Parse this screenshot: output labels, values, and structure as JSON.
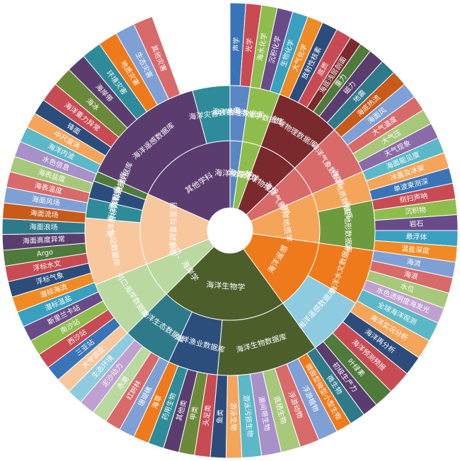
{
  "chart_data": {
    "type": "sunburst",
    "center_hole": true,
    "rings": [
      {
        "ring": 1,
        "segments": [
          {
            "label": "海洋物理学",
            "start": 0,
            "end": 8,
            "color": "#5b86c4"
          },
          {
            "label": "海洋化学",
            "start": 8,
            "end": 20,
            "color": "#8fbd4d"
          },
          {
            "label": "地球物理学",
            "start": 20,
            "end": 46,
            "color": "#7a2a2d"
          },
          {
            "label": "海洋气象学",
            "start": 46,
            "end": 66,
            "color": "#d86a6a"
          },
          {
            "label": "海洋地质学",
            "start": 66,
            "end": 98,
            "color": "#f4a55a"
          },
          {
            "label": "海洋遥感",
            "start": 98,
            "end": 144,
            "color": "#ee7a1c"
          },
          {
            "label": "海洋生物学",
            "start": 144,
            "end": 225,
            "color": "#4c5e2a"
          },
          {
            "label": "河口、海岸学",
            "start": 225,
            "end": 248,
            "color": "#b9d9a0"
          },
          {
            "label": "海洋调查与监测",
            "start": 248,
            "end": 294,
            "color": "#f9c79d"
          },
          {
            "label": "其他学科",
            "start": 294,
            "end": 360,
            "color": "#5a3d6e"
          }
        ]
      },
      {
        "ring": 2,
        "segments": [
          {
            "label": "海洋物理数据库",
            "start": 0,
            "end": 8,
            "color": "#5b86c4"
          },
          {
            "label": "海洋化学数据库",
            "start": 8,
            "end": 20,
            "color": "#8fbd4d"
          },
          {
            "label": "地球物理数据库",
            "start": 20,
            "end": 46,
            "color": "#7a2a2d"
          },
          {
            "label": "海洋气象数据库",
            "start": 46,
            "end": 66,
            "color": "#d86a6a"
          },
          {
            "label": "海洋地质数据库",
            "start": 66,
            "end": 78,
            "color": "#f4a55a"
          },
          {
            "label": "海底地形数据库",
            "start": 78,
            "end": 98,
            "color": "#6e9a3e"
          },
          {
            "label": "海洋水文数据库",
            "start": 98,
            "end": 120,
            "color": "#ee7a1c"
          },
          {
            "label": "海洋遥感数据库",
            "start": 120,
            "end": 144,
            "color": "#8fcbe0"
          },
          {
            "label": "海洋生物数据库",
            "start": 144,
            "end": 185,
            "color": "#4c5e2a"
          },
          {
            "label": "海洋渔业数据库",
            "start": 185,
            "end": 205,
            "color": "#2b4e7d"
          },
          {
            "label": "海洋生态数据库",
            "start": 205,
            "end": 225,
            "color": "#2e7a8a"
          },
          {
            "label": "河口海岸数据库",
            "start": 225,
            "end": 248,
            "color": "#b9d9a0"
          },
          {
            "label": "台站数据库",
            "start": 248,
            "end": 275,
            "color": "#f9c79d"
          },
          {
            "label": "海洋潜标数据库",
            "start": 275,
            "end": 283,
            "color": "#2e8c9a"
          },
          {
            "label": "海洋浮标数据库",
            "start": 283,
            "end": 290,
            "color": "#2c4d7c"
          },
          {
            "label": "漂流浮标数据库",
            "start": 290,
            "end": 294,
            "color": "#4e7a3b"
          },
          {
            "label": "海洋遥感数据库",
            "start": 294,
            "end": 345,
            "color": "#5a3d6e"
          },
          {
            "label": "海洋灾害数据库",
            "start": 345,
            "end": 360,
            "color": "#2e8c9a"
          }
        ]
      },
      {
        "ring": 3,
        "segments": [
          {
            "label": "声学",
            "start": 0,
            "end": 4,
            "color": "#3a74b8"
          },
          {
            "label": "光学",
            "start": 4,
            "end": 8,
            "color": "#c84b53"
          },
          {
            "label": "海水化学",
            "start": 8,
            "end": 12,
            "color": "#8fbd4d"
          },
          {
            "label": "沉积化学",
            "start": 12,
            "end": 16,
            "color": "#6a4b8a"
          },
          {
            "label": "生物化学",
            "start": 16,
            "end": 20,
            "color": "#3aa0c0"
          },
          {
            "label": "大气化学",
            "start": 20,
            "end": 24,
            "color": "#f08a24"
          },
          {
            "label": "放射性核素",
            "start": 24,
            "end": 28,
            "color": "#2c4d7c"
          },
          {
            "label": "底质",
            "start": 28,
            "end": 32,
            "color": "#c84b53"
          },
          {
            "label": "海底浅层剖面",
            "start": 32,
            "end": 35,
            "color": "#7a2a2d"
          },
          {
            "label": "重力",
            "start": 35,
            "end": 38,
            "color": "#4e7a3b"
          },
          {
            "label": "磁力",
            "start": 38,
            "end": 42,
            "color": "#5a3d6e"
          },
          {
            "label": "地震",
            "start": 42,
            "end": 46,
            "color": "#2e7a8a"
          },
          {
            "label": "海底热流",
            "start": 46,
            "end": 50,
            "color": "#c85a1a"
          },
          {
            "label": "海面风",
            "start": 50,
            "end": 54,
            "color": "#7fa0d4"
          },
          {
            "label": "大气温度",
            "start": 54,
            "end": 58,
            "color": "#d86a6a"
          },
          {
            "label": "大气压",
            "start": 58,
            "end": 62,
            "color": "#a7c87a"
          },
          {
            "label": "天气现象",
            "start": 62,
            "end": 66,
            "color": "#8a6aa8"
          },
          {
            "label": "海面能见度",
            "start": 66,
            "end": 70,
            "color": "#5bb8c8"
          },
          {
            "label": "冰盖及冰架",
            "start": 70,
            "end": 74,
            "color": "#f4a55a"
          },
          {
            "label": "单波束测深",
            "start": 74,
            "end": 78,
            "color": "#3a74b8"
          },
          {
            "label": "侧扫声呐",
            "start": 78,
            "end": 82,
            "color": "#c84b53"
          },
          {
            "label": "沉积物",
            "start": 82,
            "end": 86,
            "color": "#8fbd4d"
          },
          {
            "label": "岩石",
            "start": 86,
            "end": 90,
            "color": "#6a4b8a"
          },
          {
            "label": "悬浮体",
            "start": 90,
            "end": 94,
            "color": "#3aa0c0"
          },
          {
            "label": "温盐深度",
            "start": 94,
            "end": 98,
            "color": "#f08a24"
          },
          {
            "label": "海流",
            "start": 98,
            "end": 102,
            "color": "#7fa0d4"
          },
          {
            "label": "海浪",
            "start": 102,
            "end": 106,
            "color": "#d86a6a"
          },
          {
            "label": "水位",
            "start": 106,
            "end": 110,
            "color": "#a7c87a"
          },
          {
            "label": "水色透明度海发光",
            "start": 110,
            "end": 114,
            "color": "#c0a0d0"
          },
          {
            "label": "全球海洋观测",
            "start": 114,
            "end": 119,
            "color": "#5bb8c8"
          },
          {
            "label": "海洋实况分析",
            "start": 119,
            "end": 124,
            "color": "#f4a55a"
          },
          {
            "label": "海洋再分析",
            "start": 124,
            "end": 129,
            "color": "#2c4d7c"
          },
          {
            "label": "海洋预测预报",
            "start": 129,
            "end": 135,
            "color": "#c84b53"
          },
          {
            "label": "叶绿素",
            "start": 135,
            "end": 140,
            "color": "#4e7a3b"
          },
          {
            "label": "初级生产力",
            "start": 140,
            "end": 144,
            "color": "#5a3d6e"
          },
          {
            "label": "微生物",
            "start": 144,
            "end": 148,
            "color": "#2e7a8a"
          },
          {
            "label": "微微型微型小型生物",
            "start": 148,
            "end": 152,
            "color": "#ee7a1c"
          },
          {
            "label": "浮游植物",
            "start": 152,
            "end": 157,
            "color": "#7fa0d4"
          },
          {
            "label": "浮游动物",
            "start": 157,
            "end": 162,
            "color": "#d86a6a"
          },
          {
            "label": "底栖生物",
            "start": 162,
            "end": 167,
            "color": "#a7c87a"
          },
          {
            "label": "潮间带生物",
            "start": 167,
            "end": 172,
            "color": "#a890c8"
          },
          {
            "label": "游泳污损生物",
            "start": 172,
            "end": 177,
            "color": "#5bb8c8"
          },
          {
            "label": "游泳生物",
            "start": 177,
            "end": 181,
            "color": "#f4a55a"
          },
          {
            "label": "鱼类",
            "start": 181,
            "end": 185,
            "color": "#2c4d7c"
          },
          {
            "label": "头足类",
            "start": 185,
            "end": 189,
            "color": "#c84b53"
          },
          {
            "label": "甲类",
            "start": 189,
            "end": 193,
            "color": "#6a8a3a"
          },
          {
            "label": "其他类",
            "start": 193,
            "end": 197,
            "color": "#5a3d6e"
          },
          {
            "label": "药用生物",
            "start": 197,
            "end": 201,
            "color": "#2e8c9a"
          },
          {
            "label": "海草",
            "start": 201,
            "end": 205,
            "color": "#ee7a1c"
          },
          {
            "label": "珊瑚礁",
            "start": 205,
            "end": 209,
            "color": "#7fa0d4"
          },
          {
            "label": "红树林",
            "start": 209,
            "end": 213,
            "color": "#d86a6a"
          },
          {
            "label": "赤潮",
            "start": 213,
            "end": 217,
            "color": "#b9d9a0"
          },
          {
            "label": "泥沙动力",
            "start": 217,
            "end": 221,
            "color": "#c0a0d0"
          },
          {
            "label": "生态环境",
            "start": 221,
            "end": 225,
            "color": "#8fcbe0"
          },
          {
            "label": "大专调查",
            "start": 225,
            "end": 229,
            "color": "#f9c79d"
          },
          {
            "label": "三亚站",
            "start": 229,
            "end": 233,
            "color": "#3a74b8"
          },
          {
            "label": "西沙站",
            "start": 233,
            "end": 237,
            "color": "#c84b53"
          },
          {
            "label": "南沙站",
            "start": 237,
            "end": 241,
            "color": "#8fbd4d"
          },
          {
            "label": "斯里兰卡站",
            "start": 241,
            "end": 245,
            "color": "#6a4b8a"
          },
          {
            "label": "潜标温盐",
            "start": 245,
            "end": 249,
            "color": "#3aa0c0"
          },
          {
            "label": "潜标海流",
            "start": 249,
            "end": 253,
            "color": "#f08a24"
          },
          {
            "label": "浮标气象",
            "start": 253,
            "end": 257,
            "color": "#2c4d7c"
          },
          {
            "label": "浮标水文",
            "start": 257,
            "end": 261,
            "color": "#c84b53"
          },
          {
            "label": "Argo",
            "start": 261,
            "end": 265,
            "color": "#4e7a3b"
          },
          {
            "label": "海面高度异常",
            "start": 265,
            "end": 269,
            "color": "#5a3d6e"
          },
          {
            "label": "海面浪场",
            "start": 269,
            "end": 273,
            "color": "#2e7a8a"
          },
          {
            "label": "海面流场",
            "start": 273,
            "end": 277,
            "color": "#c85a1a"
          },
          {
            "label": "海面风场",
            "start": 277,
            "end": 281,
            "color": "#7fa0d4"
          },
          {
            "label": "海表温度",
            "start": 281,
            "end": 285,
            "color": "#d86a6a"
          },
          {
            "label": "海表盐度",
            "start": 285,
            "end": 289,
            "color": "#a7c87a"
          },
          {
            "label": "水色信息",
            "start": 289,
            "end": 293,
            "color": "#a890c8"
          },
          {
            "label": "海洋内波",
            "start": 293,
            "end": 297,
            "color": "#5bb8c8"
          },
          {
            "label": "中尺度涡",
            "start": 297,
            "end": 301,
            "color": "#f4a55a"
          },
          {
            "label": "锋面",
            "start": 301,
            "end": 305,
            "color": "#2c4d7c"
          },
          {
            "label": "海洋重力异常",
            "start": 305,
            "end": 310,
            "color": "#c84b53"
          },
          {
            "label": "海冰",
            "start": 310,
            "end": 315,
            "color": "#6a8a3a"
          },
          {
            "label": "海岸带",
            "start": 315,
            "end": 320,
            "color": "#5a3d6e"
          },
          {
            "label": "环境灾害",
            "start": 320,
            "end": 325,
            "color": "#2e8c9a"
          },
          {
            "label": "地质灾害",
            "start": 325,
            "end": 330,
            "color": "#ee7a1c"
          },
          {
            "label": "生态灾害",
            "start": 330,
            "end": 335,
            "color": "#7fa0d4"
          },
          {
            "label": "其他灾害",
            "start": 335,
            "end": 340,
            "color": "#d86a6a"
          }
        ]
      }
    ]
  }
}
